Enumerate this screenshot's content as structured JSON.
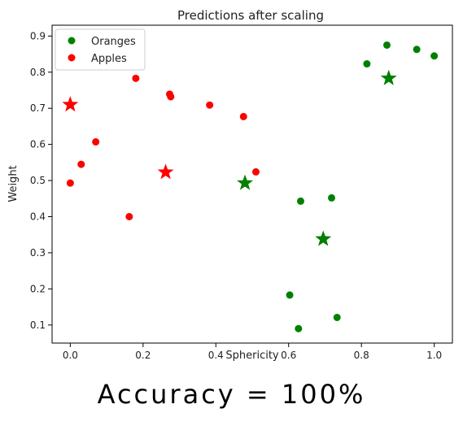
{
  "caption": "Accuracy = 100%",
  "chart_data": {
    "type": "scatter",
    "title": "Predictions after scaling",
    "xlabel": "Sphericity",
    "ylabel": "Weight",
    "xlim": [
      -0.05,
      1.05
    ],
    "ylim": [
      0.05,
      0.93
    ],
    "xticks": [
      0.0,
      0.2,
      0.4,
      0.6,
      0.8,
      1.0
    ],
    "yticks": [
      0.1,
      0.2,
      0.3,
      0.4,
      0.5,
      0.6,
      0.7,
      0.8,
      0.9
    ],
    "xtick_labels": [
      "0.0",
      "0.2",
      "0.4",
      "0.6",
      "0.8",
      "1.0"
    ],
    "ytick_labels": [
      "0.1",
      "0.2",
      "0.3",
      "0.4",
      "0.5",
      "0.6",
      "0.7",
      "0.8",
      "0.9"
    ],
    "legend_position": "top-left",
    "grid": false,
    "series": [
      {
        "name": "Oranges",
        "color": "#008000",
        "marker": "circle",
        "points": [
          [
            0.87,
            0.875
          ],
          [
            0.952,
            0.863
          ],
          [
            1.0,
            0.845
          ],
          [
            0.815,
            0.823
          ],
          [
            0.633,
            0.443
          ],
          [
            0.718,
            0.452
          ],
          [
            0.603,
            0.183
          ],
          [
            0.733,
            0.121
          ],
          [
            0.627,
            0.09
          ]
        ]
      },
      {
        "name": "Apples",
        "color": "#ff0000",
        "marker": "circle",
        "points": [
          [
            0.18,
            0.783
          ],
          [
            0.273,
            0.739
          ],
          [
            0.276,
            0.732
          ],
          [
            0.383,
            0.709
          ],
          [
            0.476,
            0.677
          ],
          [
            0.07,
            0.607
          ],
          [
            0.03,
            0.545
          ],
          [
            0.51,
            0.524
          ],
          [
            0.0,
            0.493
          ],
          [
            0.162,
            0.4
          ]
        ]
      }
    ],
    "predictions": [
      {
        "class": "Oranges",
        "color": "#008000",
        "marker": "star",
        "points": [
          [
            0.875,
            0.783
          ],
          [
            0.48,
            0.493
          ],
          [
            0.695,
            0.338
          ]
        ]
      },
      {
        "class": "Apples",
        "color": "#ff0000",
        "marker": "star",
        "points": [
          [
            0.0,
            0.71
          ],
          [
            0.262,
            0.523
          ]
        ]
      }
    ]
  }
}
